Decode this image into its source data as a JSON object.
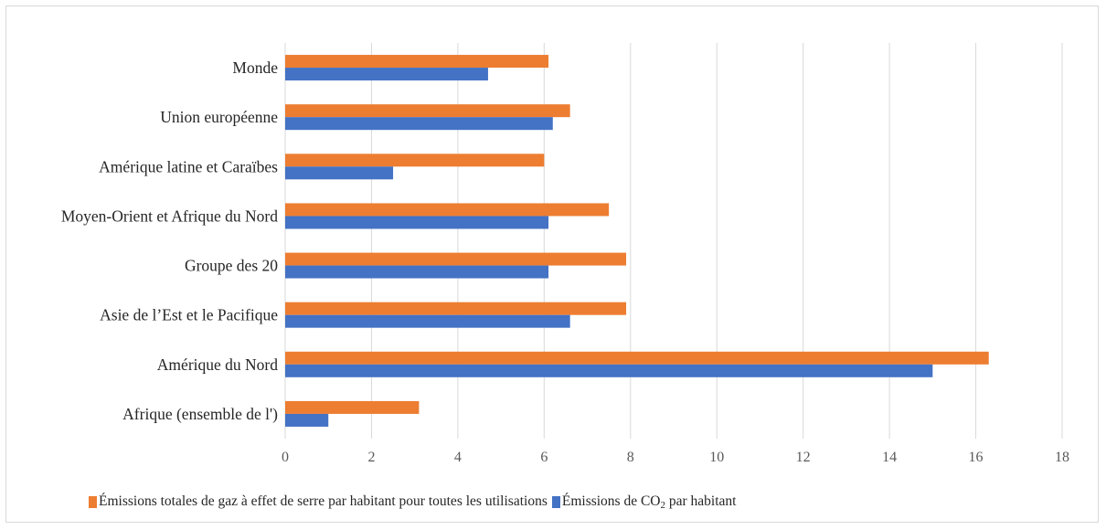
{
  "chart_data": {
    "type": "bar",
    "orientation": "horizontal",
    "categories": [
      "Monde",
      "Union européenne",
      "Amérique latine et Caraïbes",
      "Moyen-Orient et Afrique du Nord",
      "Groupe des 20",
      "Asie de l’Est et le Pacifique",
      "Amérique du Nord",
      "Afrique (ensemble de l')"
    ],
    "series": [
      {
        "name": "Émissions totales de gaz à effet de serre par habitant pour toutes les utilisations",
        "color": "#ed7d31",
        "values": [
          6.1,
          6.6,
          6.0,
          7.5,
          7.9,
          7.9,
          16.3,
          3.1
        ]
      },
      {
        "name": "Émissions de CO2 par habitant",
        "color": "#4472c4",
        "values": [
          4.7,
          6.2,
          2.5,
          6.1,
          6.1,
          6.6,
          15.0,
          1.0
        ]
      }
    ],
    "x_ticks": [
      "0",
      "2",
      "4",
      "6",
      "8",
      "10",
      "12",
      "14",
      "16",
      "18"
    ],
    "xlim": [
      0,
      18
    ],
    "grid": "vertical",
    "legend_position": "bottom"
  },
  "legend": {
    "item1": "Émissions totales de gaz à effet de serre par habitant pour toutes les utilisations",
    "item2_prefix": "Émissions de CO",
    "item2_sub": "2",
    "item2_suffix": " par habitant"
  }
}
